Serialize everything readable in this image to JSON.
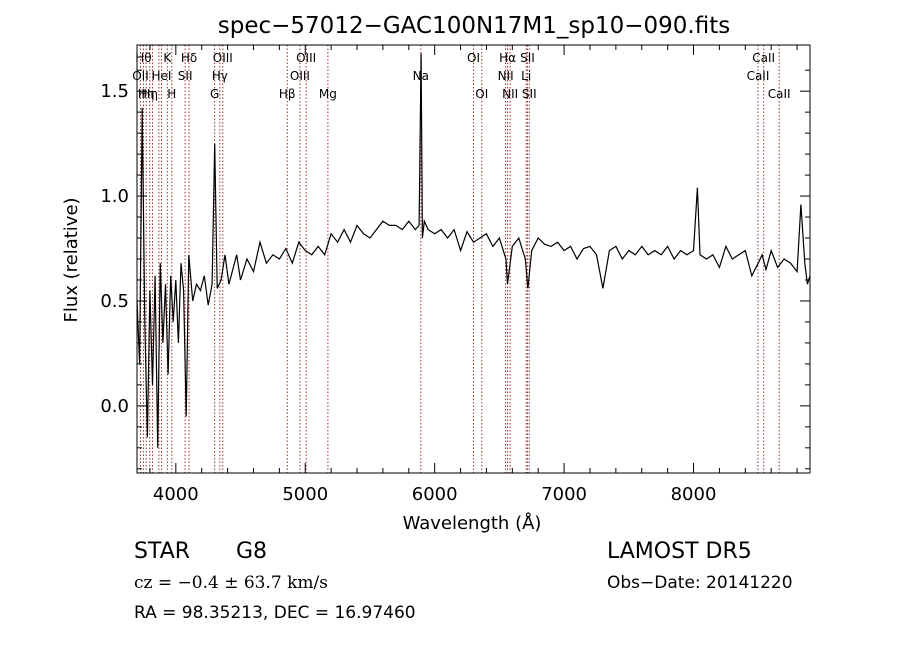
{
  "chart_data": {
    "type": "line",
    "title": "spec−57012−GAC100N17M1_sp10−090.fits",
    "xlabel": "Wavelength (Å)",
    "ylabel": "Flux (relative)",
    "xlim": [
      3700,
      8900
    ],
    "ylim": [
      -0.32,
      1.72
    ],
    "x_ticks": [
      4000,
      5000,
      6000,
      7000,
      8000
    ],
    "x_tick_labels": [
      "4000",
      "5000",
      "6000",
      "7000",
      "8000"
    ],
    "y_ticks": [
      0.0,
      0.5,
      1.0,
      1.5
    ],
    "y_tick_labels": [
      "0.0",
      "0.5",
      "1.0",
      "1.5"
    ],
    "grid": false,
    "line_color": "#000000",
    "marker_color": "#a0302a",
    "series": [
      {
        "x": [
          3700,
          3720,
          3740,
          3760,
          3780,
          3800,
          3820,
          3840,
          3860,
          3880,
          3900,
          3920,
          3940,
          3960,
          3980,
          4000,
          4020,
          4040,
          4060,
          4080,
          4100,
          4130,
          4160,
          4190,
          4220,
          4250,
          4280,
          4300,
          4320,
          4350,
          4380,
          4410,
          4440,
          4470,
          4500,
          4550,
          4600,
          4650,
          4700,
          4750,
          4800,
          4850,
          4900,
          4950,
          5000,
          5050,
          5100,
          5150,
          5200,
          5250,
          5300,
          5350,
          5400,
          5450,
          5500,
          5550,
          5600,
          5650,
          5700,
          5750,
          5800,
          5850,
          5880,
          5895,
          5905,
          5920,
          5950,
          6000,
          6050,
          6100,
          6150,
          6200,
          6250,
          6300,
          6350,
          6400,
          6450,
          6500,
          6550,
          6563,
          6600,
          6650,
          6700,
          6720,
          6750,
          6800,
          6850,
          6900,
          6950,
          7000,
          7050,
          7100,
          7150,
          7200,
          7250,
          7300,
          7350,
          7400,
          7450,
          7500,
          7550,
          7600,
          7650,
          7700,
          7750,
          7800,
          7850,
          7900,
          7950,
          8000,
          8030,
          8050,
          8100,
          8150,
          8200,
          8250,
          8300,
          8350,
          8400,
          8450,
          8500,
          8530,
          8560,
          8600,
          8650,
          8700,
          8750,
          8800,
          8830,
          8860,
          8880,
          8900
        ],
        "y": [
          0.5,
          0.2,
          1.42,
          0.4,
          -0.15,
          0.55,
          0.1,
          0.62,
          -0.2,
          0.68,
          0.3,
          0.58,
          0.15,
          0.62,
          0.4,
          0.6,
          0.3,
          0.68,
          0.55,
          -0.05,
          0.72,
          0.5,
          0.58,
          0.55,
          0.62,
          0.48,
          0.58,
          1.25,
          0.56,
          0.6,
          0.72,
          0.58,
          0.65,
          0.72,
          0.6,
          0.7,
          0.64,
          0.78,
          0.68,
          0.72,
          0.7,
          0.75,
          0.68,
          0.78,
          0.74,
          0.72,
          0.76,
          0.72,
          0.82,
          0.78,
          0.84,
          0.78,
          0.86,
          0.82,
          0.8,
          0.84,
          0.88,
          0.86,
          0.86,
          0.84,
          0.88,
          0.84,
          0.86,
          1.68,
          0.8,
          0.88,
          0.84,
          0.82,
          0.84,
          0.8,
          0.84,
          0.74,
          0.83,
          0.78,
          0.8,
          0.82,
          0.76,
          0.8,
          0.7,
          0.58,
          0.76,
          0.8,
          0.7,
          0.56,
          0.74,
          0.8,
          0.77,
          0.76,
          0.78,
          0.74,
          0.76,
          0.7,
          0.75,
          0.76,
          0.72,
          0.56,
          0.74,
          0.76,
          0.7,
          0.74,
          0.72,
          0.76,
          0.72,
          0.74,
          0.72,
          0.76,
          0.7,
          0.74,
          0.72,
          0.74,
          1.04,
          0.72,
          0.7,
          0.72,
          0.66,
          0.76,
          0.7,
          0.72,
          0.74,
          0.62,
          0.68,
          0.72,
          0.65,
          0.74,
          0.66,
          0.7,
          0.68,
          0.64,
          0.96,
          0.68,
          0.58,
          0.62
        ]
      }
    ],
    "lines": [
      {
        "x": 3727,
        "label": "OII",
        "row": 2
      },
      {
        "x": 3750,
        "label": "Hθ",
        "row": 1
      },
      {
        "x": 3771,
        "label": "Hη",
        "row": 3
      },
      {
        "x": 3798,
        "label": "Hη",
        "row": 3
      },
      {
        "x": 3820,
        "label": "",
        "row": 0
      },
      {
        "x": 3869,
        "label": "",
        "row": 0
      },
      {
        "x": 3889,
        "label": "HeI",
        "row": 2
      },
      {
        "x": 3934,
        "label": "K",
        "row": 1
      },
      {
        "x": 3969,
        "label": "H",
        "row": 3
      },
      {
        "x": 4072,
        "label": "SII",
        "row": 2
      },
      {
        "x": 4102,
        "label": "Hδ",
        "row": 1
      },
      {
        "x": 4300,
        "label": "G",
        "row": 3
      },
      {
        "x": 4340,
        "label": "Hγ",
        "row": 2
      },
      {
        "x": 4363,
        "label": "OIII",
        "row": 1
      },
      {
        "x": 4861,
        "label": "Hβ",
        "row": 3
      },
      {
        "x": 4959,
        "label": "OIII",
        "row": 2
      },
      {
        "x": 5007,
        "label": "OIII",
        "row": 1
      },
      {
        "x": 5175,
        "label": "Mg",
        "row": 3
      },
      {
        "x": 5893,
        "label": "Na",
        "row": 2
      },
      {
        "x": 6300,
        "label": "OI",
        "row": 1
      },
      {
        "x": 6364,
        "label": "OI",
        "row": 3
      },
      {
        "x": 6548,
        "label": "NII",
        "row": 2
      },
      {
        "x": 6563,
        "label": "Hα",
        "row": 1
      },
      {
        "x": 6583,
        "label": "NII",
        "row": 3
      },
      {
        "x": 6707,
        "label": "Li",
        "row": 2
      },
      {
        "x": 6717,
        "label": "SII",
        "row": 1
      },
      {
        "x": 6731,
        "label": "SII",
        "row": 3
      },
      {
        "x": 8498,
        "label": "CaII",
        "row": 2
      },
      {
        "x": 8542,
        "label": "CaII",
        "row": 1
      },
      {
        "x": 8662,
        "label": "CaII",
        "row": 3
      }
    ]
  },
  "info": {
    "object_class": "STAR",
    "subclass": "G8",
    "survey": "LAMOST  DR5",
    "redshift": "cz = −0.4 ± 63.7 km/s",
    "obs_date": "Obs−Date: 20141220",
    "coords": "RA =  98.35213, DEC =  16.97460"
  }
}
